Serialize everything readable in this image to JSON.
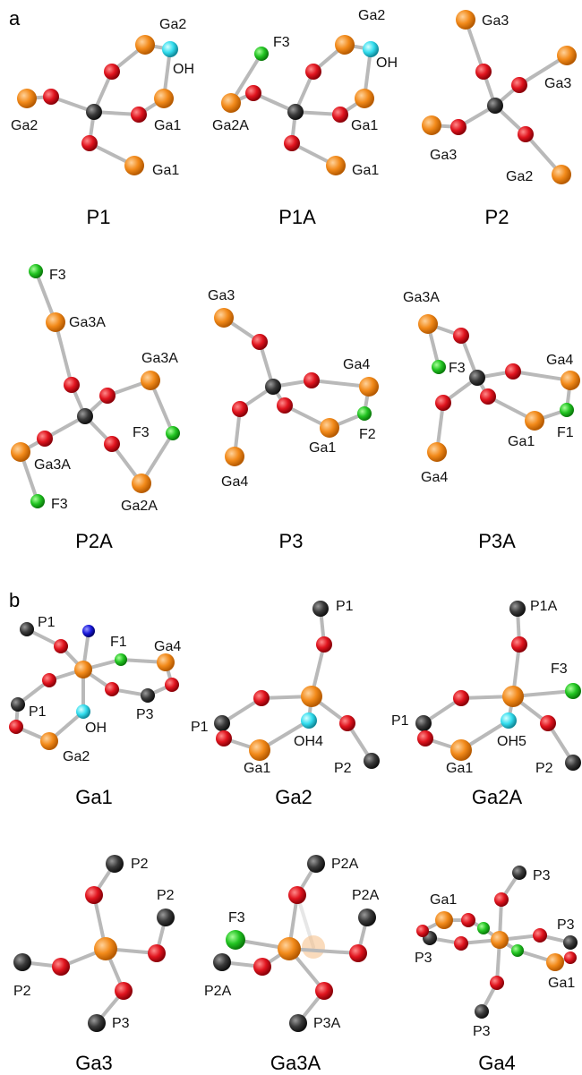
{
  "panel_a": {
    "letter": "a",
    "structures": [
      {
        "id": "P1",
        "caption": "P1",
        "labels": [
          "Ga2",
          "OH",
          "Ga2",
          "Ga1",
          "Ga1"
        ]
      },
      {
        "id": "P1A",
        "caption": "P1A",
        "labels": [
          "Ga2",
          "F3",
          "OH",
          "Ga2A",
          "Ga1",
          "Ga1"
        ]
      },
      {
        "id": "P2",
        "caption": "P2",
        "labels": [
          "Ga3",
          "Ga3",
          "Ga3",
          "Ga2"
        ]
      },
      {
        "id": "P2A",
        "caption": "P2A",
        "labels": [
          "F3",
          "Ga3A",
          "Ga3A",
          "F3",
          "Ga3A",
          "F3",
          "Ga2A"
        ]
      },
      {
        "id": "P3",
        "caption": "P3",
        "labels": [
          "Ga3",
          "Ga4",
          "Ga1",
          "F2",
          "Ga4"
        ]
      },
      {
        "id": "P3A",
        "caption": "P3A",
        "labels": [
          "Ga3A",
          "Ga4",
          "F3",
          "Ga1",
          "F1",
          "Ga4"
        ]
      }
    ]
  },
  "panel_b": {
    "letter": "b",
    "structures": [
      {
        "id": "Ga1",
        "caption": "Ga1",
        "labels": [
          "P1",
          "F1",
          "Ga4",
          "P1",
          "P3",
          "OH",
          "Ga2"
        ]
      },
      {
        "id": "Ga2",
        "caption": "Ga2",
        "labels": [
          "P1",
          "P1",
          "OH4",
          "Ga1",
          "P2"
        ]
      },
      {
        "id": "Ga2A",
        "caption": "Ga2A",
        "labels": [
          "P1A",
          "F3",
          "P1",
          "OH5",
          "Ga1",
          "P2"
        ]
      },
      {
        "id": "Ga3",
        "caption": "Ga3",
        "labels": [
          "P2",
          "P2",
          "P2",
          "P3"
        ]
      },
      {
        "id": "Ga3A",
        "caption": "Ga3A",
        "labels": [
          "P2A",
          "F3",
          "P2A",
          "P2A",
          "P3A"
        ]
      },
      {
        "id": "Ga4",
        "caption": "Ga4",
        "labels": [
          "P3",
          "Ga1",
          "P3",
          "P3",
          "Ga1",
          "P3"
        ]
      }
    ]
  },
  "colors": {
    "Ga": "#f28a1a",
    "O": "#e0141e",
    "C": "#3a3a3a",
    "F": "#22c422",
    "OH": "#33ddee",
    "N": "#1a1adc",
    "bond": "#b9b9b9"
  }
}
